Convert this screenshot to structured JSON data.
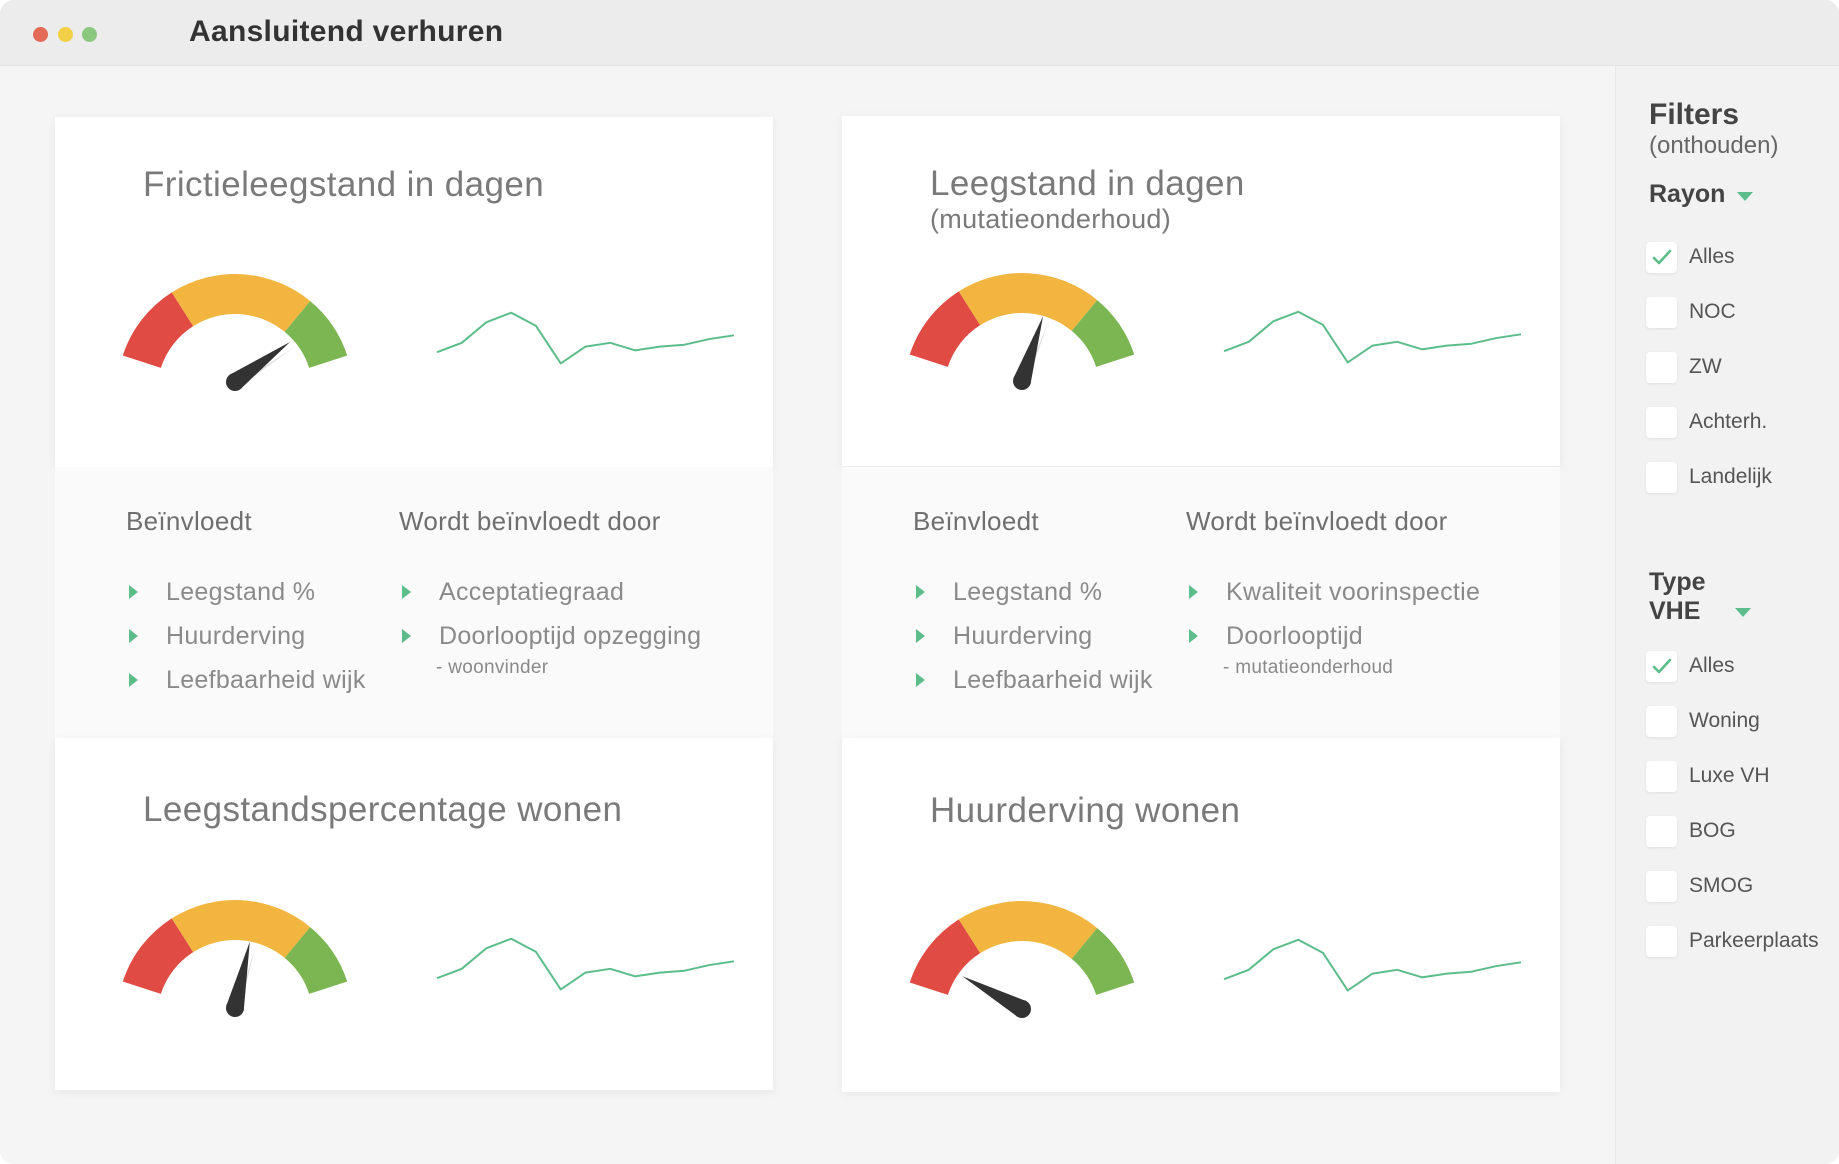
{
  "window": {
    "title": "Aansluitend verhuren"
  },
  "colors": {
    "gauge_red": "#e04b43",
    "gauge_orange": "#f2b540",
    "gauge_green": "#7bb652",
    "needle": "#333333",
    "sparkline": "#5cbd8a",
    "accent": "#5cbd8a"
  },
  "cards": [
    {
      "title": "Frictieleegstand in dagen",
      "subtitle": "",
      "gauge_value": 0.8,
      "sparkline": [
        20,
        30,
        52,
        62,
        48,
        8,
        26,
        30,
        22,
        26,
        28,
        34,
        38
      ],
      "influences": {
        "heading": "Beïnvloedt",
        "items": [
          "Leegstand %",
          "Huurderving",
          "Leefbaarheid wijk"
        ]
      },
      "influenced_by": {
        "heading": "Wordt beïnvloedt door",
        "items": [
          "Acceptatiegraad",
          "Doorlooptijd opzegging"
        ],
        "note": "- woonvinder"
      }
    },
    {
      "title": "Leegstand in dagen",
      "subtitle": "(mutatieonderhoud)",
      "gauge_value": 0.6,
      "sparkline": [
        20,
        30,
        52,
        62,
        48,
        8,
        26,
        30,
        22,
        26,
        28,
        34,
        38
      ],
      "influences": {
        "heading": "Beïnvloedt",
        "items": [
          "Leegstand %",
          "Huurderving",
          "Leefbaarheid wijk"
        ]
      },
      "influenced_by": {
        "heading": "Wordt beïnvloedt door",
        "items": [
          "Kwaliteit voorinspectie",
          "Doorlooptijd"
        ],
        "note": "- mutatieonderhoud"
      }
    },
    {
      "title": "Leegstandspercentage wonen",
      "subtitle": "",
      "gauge_value": 0.57,
      "sparkline": [
        20,
        30,
        52,
        62,
        48,
        8,
        26,
        30,
        22,
        26,
        28,
        34,
        38
      ]
    },
    {
      "title": "Huurderving wonen",
      "subtitle": "",
      "gauge_value": 0.16,
      "sparkline": [
        20,
        30,
        52,
        62,
        48,
        8,
        26,
        30,
        22,
        26,
        28,
        34,
        38
      ]
    }
  ],
  "filters": {
    "title": "Filters",
    "subtitle": "(onthouden)",
    "rayon": {
      "label": "Rayon",
      "options": [
        {
          "label": "Alles",
          "checked": true
        },
        {
          "label": "NOC",
          "checked": false
        },
        {
          "label": "ZW",
          "checked": false
        },
        {
          "label": "Achterh.",
          "checked": false
        },
        {
          "label": "Landelijk",
          "checked": false
        }
      ]
    },
    "type_vhe": {
      "label_line1": "Type",
      "label_line2": "VHE",
      "options": [
        {
          "label": "Alles",
          "checked": true
        },
        {
          "label": "Woning",
          "checked": false
        },
        {
          "label": "Luxe VH",
          "checked": false
        },
        {
          "label": "BOG",
          "checked": false
        },
        {
          "label": "SMOG",
          "checked": false
        },
        {
          "label": "Parkeerplaats",
          "checked": false
        }
      ]
    }
  }
}
